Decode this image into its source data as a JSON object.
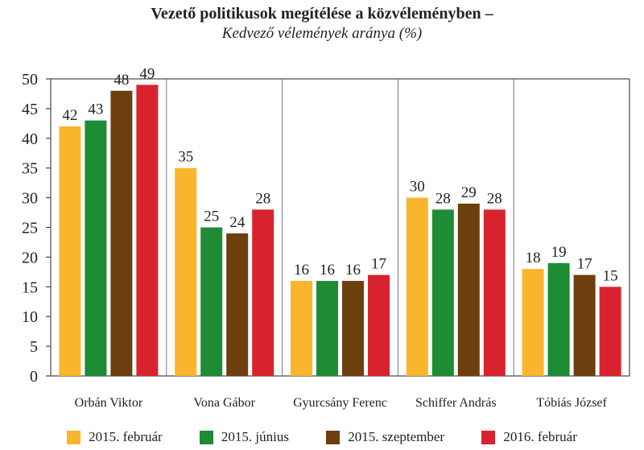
{
  "chart_data": {
    "type": "bar",
    "title": "Vezető politikusok megítélése a közvéleményben –",
    "subtitle": "Kedvező vélemények aránya (%)",
    "categories": [
      "Orbán Viktor",
      "Vona Gábor",
      "Gyurcsány Ferenc",
      "Schiffer András",
      "Tóbiás József"
    ],
    "series": [
      {
        "name": "2015. február",
        "color": "#F9B52B",
        "values": [
          42,
          35,
          16,
          30,
          18
        ]
      },
      {
        "name": "2015. június",
        "color": "#1E8B35",
        "values": [
          43,
          25,
          16,
          28,
          19
        ]
      },
      {
        "name": "2015. szeptember",
        "color": "#6E3F0E",
        "values": [
          48,
          24,
          16,
          29,
          17
        ]
      },
      {
        "name": "2016. február",
        "color": "#D8232F",
        "values": [
          49,
          28,
          17,
          28,
          15
        ]
      }
    ],
    "yticks": [
      0,
      5,
      10,
      15,
      20,
      25,
      30,
      35,
      40,
      45,
      50
    ],
    "ylim": [
      0,
      50
    ],
    "grid": false,
    "legend": "bottom"
  }
}
